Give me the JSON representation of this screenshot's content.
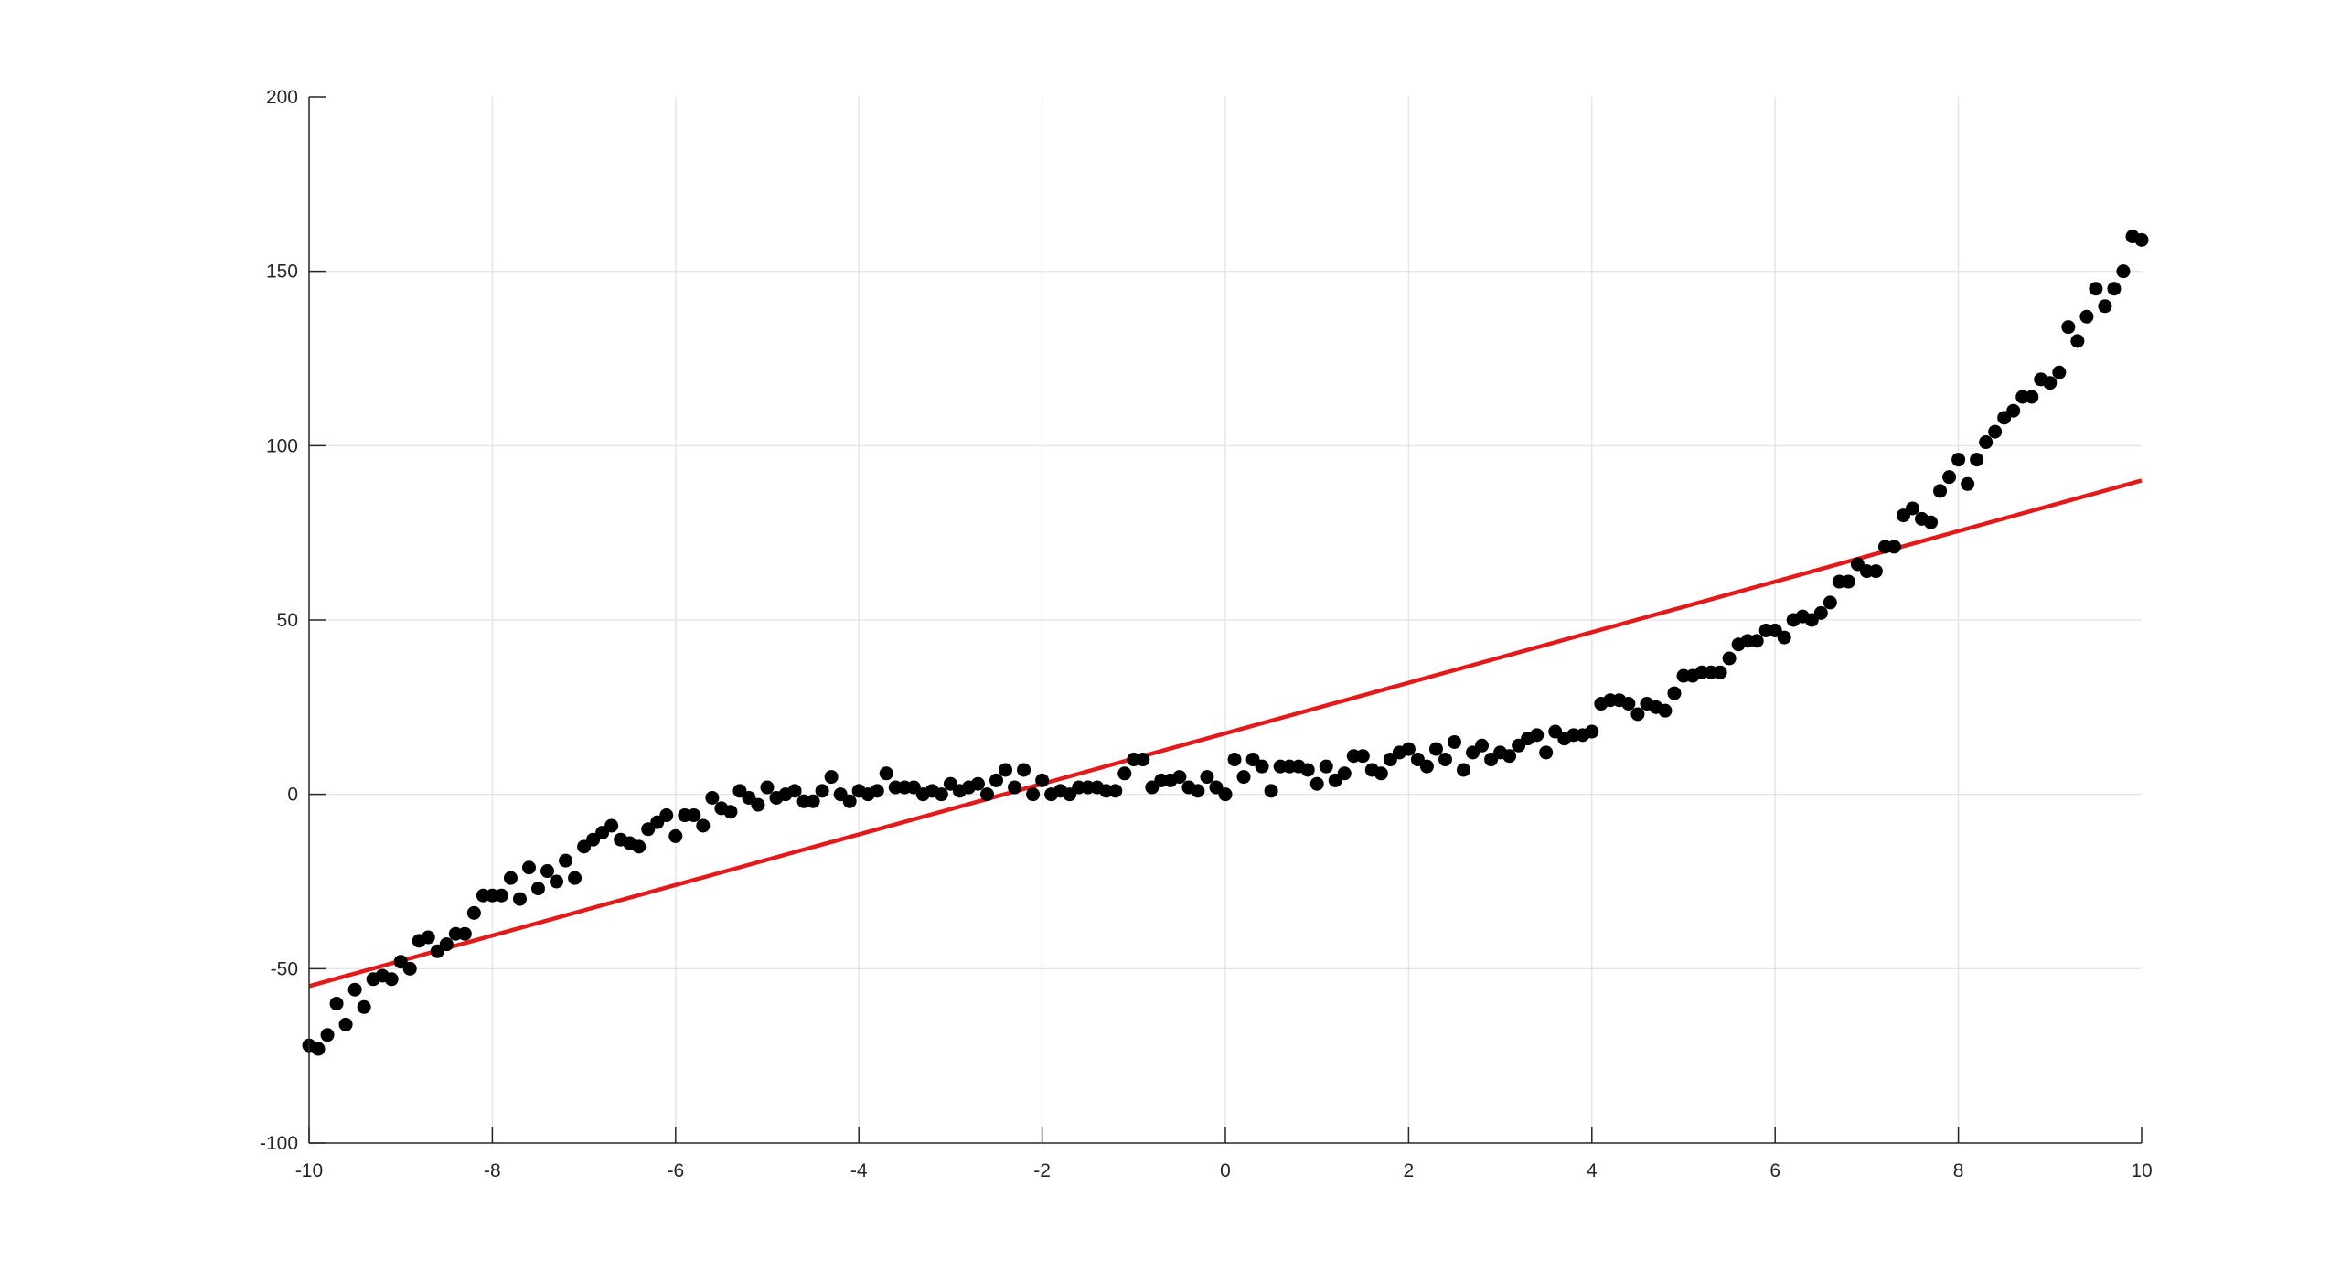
{
  "chart_data": {
    "type": "scatter",
    "title": "",
    "xlabel": "",
    "ylabel": "",
    "xlim": [
      -10,
      10
    ],
    "ylim": [
      -100,
      200
    ],
    "grid": true,
    "xticks": [
      -10,
      -8,
      -6,
      -4,
      -2,
      0,
      2,
      4,
      6,
      8,
      10
    ],
    "yticks": [
      -100,
      -50,
      0,
      50,
      100,
      150,
      200
    ],
    "marker_color": "#000000",
    "line_color": "#e31a1c",
    "series": [
      {
        "type": "scatter",
        "x": [
          -10.0,
          -9.9,
          -9.8,
          -9.7,
          -9.6,
          -9.5,
          -9.4,
          -9.3,
          -9.2,
          -9.1,
          -9.0,
          -8.9,
          -8.8,
          -8.7,
          -8.6,
          -8.5,
          -8.4,
          -8.3,
          -8.2,
          -8.1,
          -8.0,
          -7.9,
          -7.8,
          -7.7,
          -7.6,
          -7.5,
          -7.4,
          -7.3,
          -7.2,
          -7.1,
          -7.0,
          -6.9,
          -6.8,
          -6.7,
          -6.6,
          -6.5,
          -6.4,
          -6.3,
          -6.2,
          -6.1,
          -6.0,
          -5.9,
          -5.8,
          -5.7,
          -5.6,
          -5.5,
          -5.4,
          -5.3,
          -5.2,
          -5.1,
          -5.0,
          -4.9,
          -4.8,
          -4.7,
          -4.6,
          -4.5,
          -4.4,
          -4.3,
          -4.2,
          -4.1,
          -4.0,
          -3.9,
          -3.8,
          -3.7,
          -3.6,
          -3.5,
          -3.4,
          -3.3,
          -3.2,
          -3.1,
          -3.0,
          -2.9,
          -2.8,
          -2.7,
          -2.6,
          -2.5,
          -2.4,
          -2.3,
          -2.2,
          -2.1,
          -2.0,
          -1.9,
          -1.8,
          -1.7,
          -1.6,
          -1.5,
          -1.4,
          -1.3,
          -1.2,
          -1.1,
          -1.0,
          -0.9,
          -0.8,
          -0.7,
          -0.6,
          -0.5,
          -0.4,
          -0.3,
          -0.2,
          -0.1,
          0.0,
          0.1,
          0.2,
          0.3,
          0.4,
          0.5,
          0.6,
          0.7,
          0.8,
          0.9,
          1.0,
          1.1,
          1.2,
          1.3,
          1.4,
          1.5,
          1.6,
          1.7,
          1.8,
          1.9,
          2.0,
          2.1,
          2.2,
          2.3,
          2.4,
          2.5,
          2.6,
          2.7,
          2.8,
          2.9,
          3.0,
          3.1,
          3.2,
          3.3,
          3.4,
          3.5,
          3.6,
          3.7,
          3.8,
          3.9,
          4.0,
          4.1,
          4.2,
          4.3,
          4.4,
          4.5,
          4.6,
          4.7,
          4.8,
          4.9,
          5.0,
          5.1,
          5.2,
          5.3,
          5.4,
          5.5,
          5.6,
          5.7,
          5.8,
          5.9,
          6.0,
          6.1,
          6.2,
          6.3,
          6.4,
          6.5,
          6.6,
          6.7,
          6.8,
          6.9,
          7.0,
          7.1,
          7.2,
          7.3,
          7.4,
          7.5,
          7.6,
          7.7,
          7.8,
          7.9,
          8.0,
          8.1,
          8.2,
          8.3,
          8.4,
          8.5,
          8.6,
          8.7,
          8.8,
          8.9,
          9.0,
          9.1,
          9.2,
          9.3,
          9.4,
          9.5,
          9.6,
          9.7,
          9.8,
          9.9,
          10.0
        ],
        "y": [
          -72,
          -73,
          -69,
          -60,
          -66,
          -56,
          -61,
          -53,
          -52,
          -53,
          -48,
          -50,
          -42,
          -41,
          -45,
          -43,
          -40,
          -40,
          -34,
          -29,
          -29,
          -29,
          -24,
          -30,
          -21,
          -27,
          -22,
          -25,
          -19,
          -24,
          -15,
          -13,
          -11,
          -9,
          -13,
          -14,
          -15,
          -10,
          -8,
          -6,
          -12,
          -6,
          -6,
          -9,
          -1,
          -4,
          -5,
          1,
          -1,
          -3,
          2,
          -1,
          0,
          1,
          -2,
          -2,
          1,
          5,
          0,
          -2,
          1,
          0,
          1,
          6,
          2,
          2,
          2,
          0,
          1,
          0,
          3,
          1,
          2,
          3,
          0,
          4,
          7,
          2,
          7,
          0,
          4,
          0,
          1,
          0,
          2,
          2,
          2,
          1,
          1,
          6,
          10,
          10,
          2,
          4,
          4,
          5,
          2,
          1,
          5,
          2,
          0,
          10,
          5,
          10,
          8,
          1,
          8,
          8,
          8,
          7,
          3,
          8,
          4,
          6,
          11,
          11,
          7,
          6,
          10,
          12,
          13,
          10,
          8,
          13,
          10,
          15,
          7,
          12,
          14,
          10,
          12,
          11,
          14,
          16,
          17,
          12,
          18,
          16,
          17,
          17,
          18,
          26,
          27,
          27,
          26,
          23,
          26,
          25,
          24,
          29,
          34,
          34,
          35,
          35,
          35,
          39,
          43,
          44,
          44,
          47,
          47,
          45,
          50,
          51,
          50,
          52,
          55,
          61,
          61,
          66,
          64,
          64,
          71,
          71,
          80,
          82,
          79,
          78,
          87,
          91,
          96,
          89,
          96,
          101,
          104,
          108,
          110,
          114,
          114,
          119,
          118,
          121,
          134,
          130,
          137,
          145,
          140,
          145,
          150,
          160,
          159
        ]
      },
      {
        "type": "line",
        "x": [
          -10,
          10
        ],
        "y": [
          -55,
          90
        ]
      }
    ]
  }
}
